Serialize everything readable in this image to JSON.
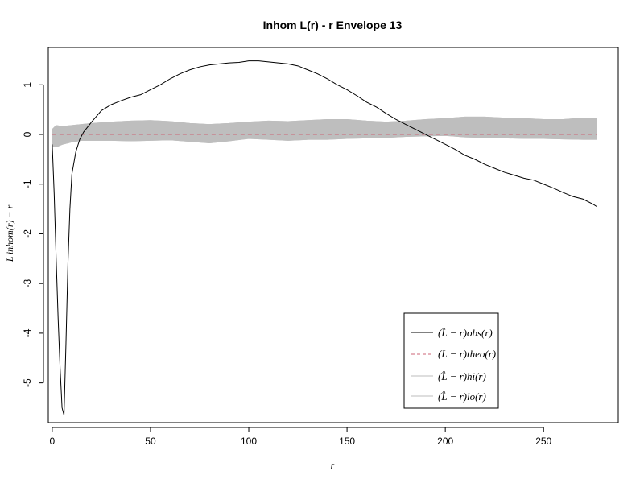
{
  "chart_data": {
    "type": "line",
    "title": "Inhom L(r) - r Envelope 13",
    "xlabel": "r",
    "ylabel": "L inhom(r) − r",
    "xlim": [
      -2,
      288
    ],
    "ylim": [
      -5.8,
      1.75
    ],
    "x_ticks": [
      0,
      50,
      100,
      150,
      200,
      250
    ],
    "y_ticks": [
      -5,
      -4,
      -3,
      -2,
      -1,
      0,
      1
    ],
    "grid": false,
    "legend_position": "bottom-right",
    "legend": [
      {
        "label": "(L̂ − r)obs(r)",
        "color": "#000000",
        "style": "solid"
      },
      {
        "label": "(L − r)theo(r)",
        "color": "#cc6677",
        "style": "dashed"
      },
      {
        "label": "(L̂ − r)hi(r)",
        "color": "#bebebe",
        "style": "solid"
      },
      {
        "label": "(L̂ − r)lo(r)",
        "color": "#bebebe",
        "style": "solid"
      }
    ],
    "series": [
      {
        "name": "obs",
        "color": "#000000",
        "x": [
          0,
          1,
          2,
          3,
          4,
          5,
          6,
          7,
          8,
          9,
          10,
          12,
          14,
          16,
          18,
          20,
          25,
          30,
          35,
          40,
          45,
          50,
          55,
          60,
          65,
          70,
          75,
          80,
          85,
          90,
          95,
          100,
          105,
          110,
          115,
          120,
          125,
          130,
          135,
          140,
          145,
          150,
          155,
          160,
          165,
          170,
          175,
          180,
          185,
          190,
          195,
          200,
          205,
          210,
          215,
          220,
          225,
          230,
          235,
          240,
          245,
          250,
          255,
          260,
          265,
          270,
          275,
          277
        ],
        "y": [
          -0.2,
          -1.2,
          -2.5,
          -3.7,
          -4.7,
          -5.5,
          -5.65,
          -4.2,
          -2.6,
          -1.5,
          -0.8,
          -0.35,
          -0.1,
          0.05,
          0.15,
          0.25,
          0.48,
          0.6,
          0.68,
          0.75,
          0.8,
          0.9,
          1.0,
          1.12,
          1.22,
          1.3,
          1.36,
          1.4,
          1.42,
          1.44,
          1.45,
          1.48,
          1.48,
          1.46,
          1.44,
          1.42,
          1.38,
          1.3,
          1.22,
          1.12,
          1.0,
          0.9,
          0.78,
          0.65,
          0.55,
          0.42,
          0.3,
          0.2,
          0.1,
          0.0,
          -0.1,
          -0.2,
          -0.3,
          -0.42,
          -0.5,
          -0.6,
          -0.68,
          -0.76,
          -0.82,
          -0.88,
          -0.92,
          -1.0,
          -1.08,
          -1.17,
          -1.25,
          -1.3,
          -1.4,
          -1.45
        ]
      },
      {
        "name": "theo",
        "color": "#cc6677",
        "x": [
          0,
          277
        ],
        "y": [
          0,
          0
        ]
      },
      {
        "name": "hi",
        "color": "#bebebe",
        "x": [
          0,
          2,
          5,
          10,
          15,
          20,
          30,
          40,
          50,
          60,
          70,
          80,
          90,
          100,
          110,
          120,
          130,
          140,
          150,
          160,
          170,
          180,
          190,
          200,
          210,
          220,
          230,
          240,
          250,
          260,
          270,
          277
        ],
        "y": [
          0.1,
          0.18,
          0.16,
          0.18,
          0.2,
          0.22,
          0.25,
          0.27,
          0.28,
          0.26,
          0.22,
          0.2,
          0.22,
          0.25,
          0.27,
          0.26,
          0.28,
          0.3,
          0.3,
          0.27,
          0.25,
          0.27,
          0.3,
          0.32,
          0.35,
          0.35,
          0.33,
          0.32,
          0.3,
          0.3,
          0.33,
          0.33
        ]
      },
      {
        "name": "lo",
        "color": "#bebebe",
        "x": [
          0,
          2,
          5,
          10,
          15,
          20,
          30,
          40,
          50,
          60,
          70,
          80,
          90,
          100,
          110,
          120,
          130,
          140,
          150,
          160,
          170,
          180,
          190,
          200,
          210,
          220,
          230,
          240,
          250,
          260,
          270,
          277
        ],
        "y": [
          -0.25,
          -0.25,
          -0.2,
          -0.15,
          -0.12,
          -0.12,
          -0.12,
          -0.13,
          -0.12,
          -0.11,
          -0.14,
          -0.17,
          -0.13,
          -0.08,
          -0.1,
          -0.12,
          -0.1,
          -0.1,
          -0.08,
          -0.07,
          -0.06,
          -0.04,
          -0.03,
          -0.02,
          -0.05,
          -0.06,
          -0.07,
          -0.08,
          -0.08,
          -0.09,
          -0.1,
          -0.1
        ]
      }
    ]
  }
}
